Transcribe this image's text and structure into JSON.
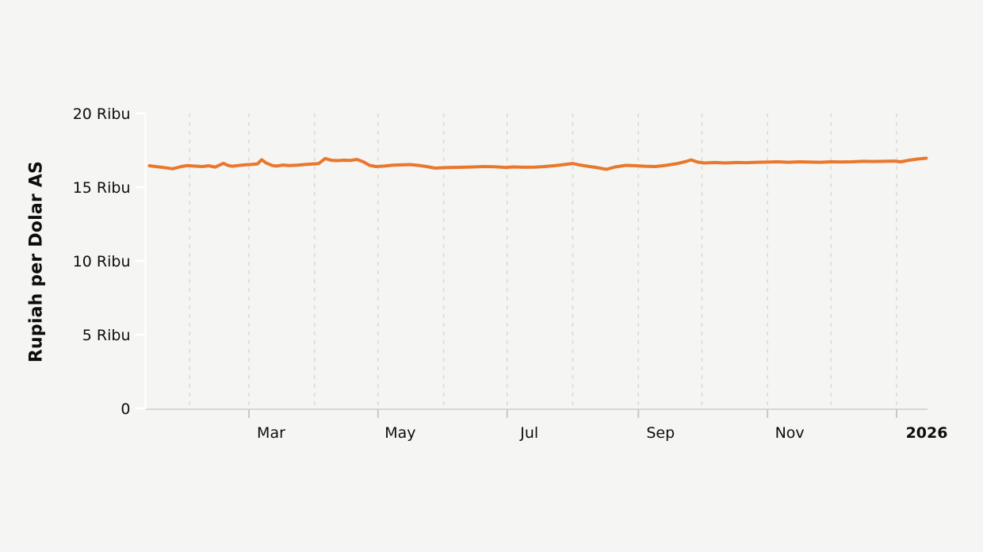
{
  "chart_data": {
    "type": "line",
    "title": "",
    "xlabel": "",
    "ylabel": "Rupiah per Dolar AS",
    "legend": "none",
    "grid": true,
    "ylim": [
      0,
      20000
    ],
    "x_range": [
      "2025-01-13",
      "2026-01-15"
    ],
    "y_ticks": [
      {
        "value": 0,
        "label": "0"
      },
      {
        "value": 5000,
        "label": "5 Ribu"
      },
      {
        "value": 10000,
        "label": "10 Ribu"
      },
      {
        "value": 15000,
        "label": "15 Ribu"
      },
      {
        "value": 20000,
        "label": "20 Ribu"
      }
    ],
    "x_gridlines": [
      "2025-02-01",
      "2025-03-01",
      "2025-04-01",
      "2025-05-01",
      "2025-06-01",
      "2025-07-01",
      "2025-08-01",
      "2025-09-01",
      "2025-10-01",
      "2025-11-01",
      "2025-12-01",
      "2026-01-01"
    ],
    "x_ticks": [
      {
        "date": "2025-03-01",
        "label": "Mar",
        "bold": false
      },
      {
        "date": "2025-05-01",
        "label": "May",
        "bold": false
      },
      {
        "date": "2025-07-01",
        "label": "Jul",
        "bold": false
      },
      {
        "date": "2025-09-01",
        "label": "Sep",
        "bold": false
      },
      {
        "date": "2025-11-01",
        "label": "Nov",
        "bold": false
      },
      {
        "date": "2026-01-01",
        "label": "2026",
        "bold": true
      }
    ],
    "colors": {
      "background": "#f5f5f3",
      "line": "#E9772C",
      "gridline": "#dcdbd9",
      "x_axis": "#d8d7d5",
      "x_tick": "#c9c8c6",
      "y_axis": "#ffffff",
      "text": "#0d0d0d"
    },
    "series": [
      {
        "name": "Rupiah per Dolar AS",
        "points": [
          [
            "2025-01-13",
            16450
          ],
          [
            "2025-01-16",
            16400
          ],
          [
            "2025-01-20",
            16330
          ],
          [
            "2025-01-24",
            16250
          ],
          [
            "2025-01-28",
            16400
          ],
          [
            "2025-01-31",
            16470
          ],
          [
            "2025-02-03",
            16430
          ],
          [
            "2025-02-07",
            16400
          ],
          [
            "2025-02-10",
            16450
          ],
          [
            "2025-02-13",
            16360
          ],
          [
            "2025-02-17",
            16620
          ],
          [
            "2025-02-19",
            16480
          ],
          [
            "2025-02-21",
            16420
          ],
          [
            "2025-02-24",
            16470
          ],
          [
            "2025-02-27",
            16510
          ],
          [
            "2025-03-02",
            16540
          ],
          [
            "2025-03-05",
            16570
          ],
          [
            "2025-03-07",
            16860
          ],
          [
            "2025-03-09",
            16650
          ],
          [
            "2025-03-12",
            16470
          ],
          [
            "2025-03-14",
            16430
          ],
          [
            "2025-03-17",
            16500
          ],
          [
            "2025-03-20",
            16470
          ],
          [
            "2025-03-24",
            16490
          ],
          [
            "2025-03-27",
            16530
          ],
          [
            "2025-03-31",
            16570
          ],
          [
            "2025-04-03",
            16600
          ],
          [
            "2025-04-06",
            16940
          ],
          [
            "2025-04-09",
            16820
          ],
          [
            "2025-04-12",
            16800
          ],
          [
            "2025-04-15",
            16830
          ],
          [
            "2025-04-18",
            16810
          ],
          [
            "2025-04-21",
            16880
          ],
          [
            "2025-04-24",
            16720
          ],
          [
            "2025-04-27",
            16480
          ],
          [
            "2025-04-30",
            16400
          ],
          [
            "2025-05-04",
            16430
          ],
          [
            "2025-05-08",
            16490
          ],
          [
            "2025-05-12",
            16510
          ],
          [
            "2025-05-16",
            16530
          ],
          [
            "2025-05-20",
            16480
          ],
          [
            "2025-05-24",
            16400
          ],
          [
            "2025-05-28",
            16290
          ],
          [
            "2025-06-01",
            16320
          ],
          [
            "2025-06-05",
            16340
          ],
          [
            "2025-06-10",
            16350
          ],
          [
            "2025-06-15",
            16370
          ],
          [
            "2025-06-20",
            16400
          ],
          [
            "2025-06-25",
            16380
          ],
          [
            "2025-06-30",
            16340
          ],
          [
            "2025-07-04",
            16370
          ],
          [
            "2025-07-09",
            16350
          ],
          [
            "2025-07-14",
            16360
          ],
          [
            "2025-07-18",
            16390
          ],
          [
            "2025-07-23",
            16450
          ],
          [
            "2025-07-28",
            16530
          ],
          [
            "2025-08-01",
            16610
          ],
          [
            "2025-08-04",
            16510
          ],
          [
            "2025-08-08",
            16420
          ],
          [
            "2025-08-12",
            16340
          ],
          [
            "2025-08-17",
            16210
          ],
          [
            "2025-08-21",
            16370
          ],
          [
            "2025-08-26",
            16480
          ],
          [
            "2025-08-31",
            16450
          ],
          [
            "2025-09-04",
            16420
          ],
          [
            "2025-09-09",
            16400
          ],
          [
            "2025-09-14",
            16480
          ],
          [
            "2025-09-19",
            16590
          ],
          [
            "2025-09-23",
            16720
          ],
          [
            "2025-09-26",
            16850
          ],
          [
            "2025-09-29",
            16700
          ],
          [
            "2025-10-02",
            16640
          ],
          [
            "2025-10-07",
            16670
          ],
          [
            "2025-10-12",
            16640
          ],
          [
            "2025-10-17",
            16670
          ],
          [
            "2025-10-22",
            16660
          ],
          [
            "2025-10-27",
            16690
          ],
          [
            "2025-11-01",
            16700
          ],
          [
            "2025-11-06",
            16720
          ],
          [
            "2025-11-11",
            16690
          ],
          [
            "2025-11-16",
            16720
          ],
          [
            "2025-11-21",
            16700
          ],
          [
            "2025-11-26",
            16690
          ],
          [
            "2025-12-01",
            16720
          ],
          [
            "2025-12-06",
            16710
          ],
          [
            "2025-12-11",
            16720
          ],
          [
            "2025-12-16",
            16750
          ],
          [
            "2025-12-21",
            16740
          ],
          [
            "2025-12-26",
            16750
          ],
          [
            "2025-12-31",
            16770
          ],
          [
            "2026-01-03",
            16720
          ],
          [
            "2026-01-07",
            16830
          ],
          [
            "2026-01-11",
            16910
          ],
          [
            "2026-01-15",
            16960
          ]
        ]
      }
    ]
  }
}
